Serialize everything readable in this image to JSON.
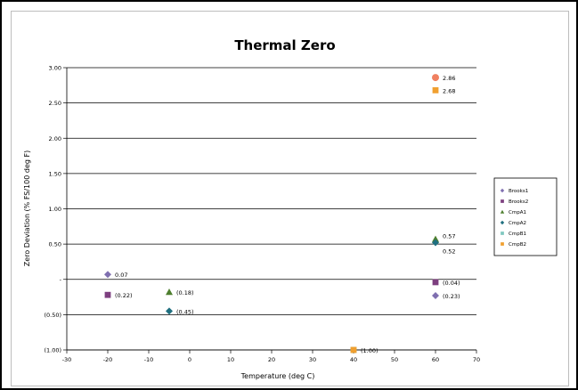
{
  "chart_data": {
    "type": "scatter",
    "title": "Thermal Zero",
    "xlabel": "Temperature (deg C)",
    "ylabel": "Zero Deviation (% FS/100 deg F)",
    "xlim": [
      -30,
      70
    ],
    "ylim": [
      -1.0,
      3.0
    ],
    "x_ticks": [
      -30,
      -20,
      -10,
      0,
      10,
      20,
      30,
      40,
      50,
      60,
      70
    ],
    "x_tick_labels": [
      "-30",
      "-20",
      "-10",
      "0",
      "10",
      "20",
      "30",
      "40",
      "50",
      "60",
      "70"
    ],
    "y_ticks": [
      -1.0,
      -0.5,
      0,
      0.5,
      1.0,
      1.5,
      2.0,
      2.5,
      3.0
    ],
    "y_tick_labels": [
      "(1.00)",
      "(0.50)",
      "-",
      "0.50",
      "1.00",
      "1.50",
      "2.00",
      "2.50",
      "3.00"
    ],
    "grid": "horizontal",
    "legend_position": "right",
    "series": [
      {
        "name": "Brooks1",
        "color": "#7f6fb0",
        "marker": "diamond",
        "points": [
          {
            "x": -20,
            "y": 0.07,
            "label": "0.07"
          },
          {
            "x": 60,
            "y": -0.23,
            "label": "(0.23)"
          }
        ]
      },
      {
        "name": "Brooks2",
        "color": "#7d3f7f",
        "marker": "square",
        "points": [
          {
            "x": -20,
            "y": -0.22,
            "label": "(0.22)"
          },
          {
            "x": 60,
            "y": -0.04,
            "label": "(0.04)"
          }
        ]
      },
      {
        "name": "CmpA1",
        "color": "#4e7f2f",
        "marker": "triangle",
        "points": [
          {
            "x": -5,
            "y": -0.18,
            "label": "(0.18)"
          },
          {
            "x": 60,
            "y": 0.57,
            "label": "0.57"
          }
        ]
      },
      {
        "name": "CmpA2",
        "color": "#1f6f7f",
        "marker": "diamond",
        "points": [
          {
            "x": -5,
            "y": -0.45,
            "label": "(0.45)"
          },
          {
            "x": 60,
            "y": 0.52,
            "label": "0.52"
          }
        ]
      },
      {
        "name": "CmpB1",
        "color": "#80c8c0",
        "marker": "square",
        "points": [
          {
            "x": 40,
            "y": -1.0,
            "label": ""
          }
        ]
      },
      {
        "name": "CmpB2",
        "color": "#f0a030",
        "marker": "square",
        "points": [
          {
            "x": 40,
            "y": -1.0,
            "label": "(1.00)"
          },
          {
            "x": 60,
            "y": 2.68,
            "label": "2.68"
          }
        ]
      },
      {
        "name": "",
        "color": "#f08060",
        "marker": "circle",
        "points": [
          {
            "x": 60,
            "y": 2.86,
            "label": "2.86"
          }
        ]
      }
    ]
  }
}
